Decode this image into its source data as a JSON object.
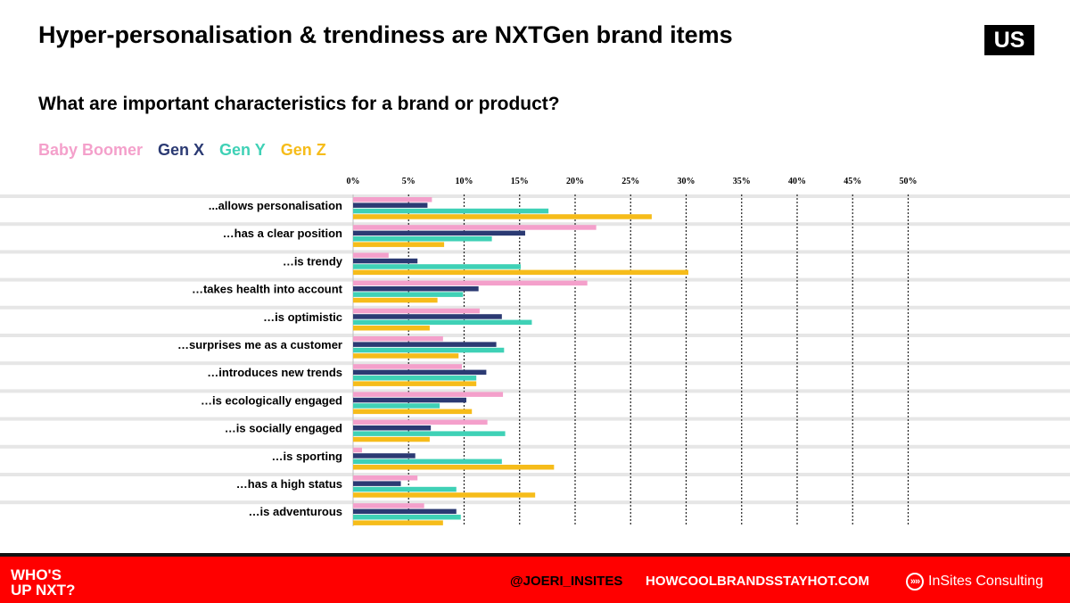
{
  "header": {
    "title": "Hyper-personalisation & trendiness are NXTGen brand items",
    "country": "US",
    "question": "What are important characteristics for a brand or product?"
  },
  "colors": {
    "baby_boomer": "#f4a0cb",
    "gen_x": "#2b3a73",
    "gen_y": "#3fd1b6",
    "gen_z": "#f6bc1a",
    "footer_red": "#ff0000"
  },
  "chart_data": {
    "type": "bar",
    "orientation": "horizontal",
    "x_unit": "%",
    "xlim": [
      0,
      50
    ],
    "xticks": [
      "0%",
      "5%",
      "10%",
      "15%",
      "20%",
      "25%",
      "30%",
      "35%",
      "40%",
      "45%",
      "50%"
    ],
    "categories": [
      "...allows personalisation",
      "…has a clear position",
      "…is trendy",
      "…takes health into account",
      "…is optimistic",
      "…surprises me as a customer",
      "…introduces new trends",
      "…is ecologically engaged",
      "…is socially engaged",
      "…is sporting",
      "…has a high status",
      "…is adventurous"
    ],
    "series": [
      {
        "name": "Baby Boomer",
        "values": [
          7.1,
          21.9,
          3.2,
          21.1,
          11.4,
          8.1,
          9.8,
          13.5,
          12.1,
          0.8,
          5.8,
          6.4
        ]
      },
      {
        "name": "Gen X",
        "values": [
          6.7,
          15.5,
          5.8,
          11.3,
          13.4,
          12.9,
          12.0,
          10.2,
          7.0,
          5.6,
          4.3,
          9.3
        ]
      },
      {
        "name": "Gen Y",
        "values": [
          17.6,
          12.5,
          15.1,
          9.9,
          16.1,
          13.6,
          11.1,
          7.8,
          13.7,
          13.4,
          9.3,
          9.7
        ]
      },
      {
        "name": "Gen Z",
        "values": [
          26.9,
          8.2,
          30.2,
          7.6,
          6.9,
          9.5,
          11.1,
          10.7,
          6.9,
          18.1,
          16.4,
          8.1
        ]
      }
    ],
    "grid": true,
    "legend": "top-left"
  },
  "footer": {
    "logo_line1": "WHO'S",
    "logo_line2": "UP NXT?",
    "handle": "@JOERI_INSITES",
    "site": "HOWCOOLBRANDSSTAYHOT.COM",
    "brand": "InSites Consulting",
    "brand_icon": "forward-chevrons-icon"
  }
}
